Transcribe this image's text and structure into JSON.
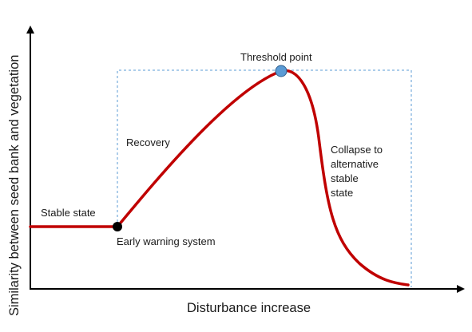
{
  "diagram": {
    "x_axis_label": "Disturbance increase",
    "y_axis_label": "Similarity between seed bank and vegetation",
    "annotations": {
      "stable_state": "Stable state",
      "early_warning": "Early warning system",
      "recovery": "Recovery",
      "threshold": "Threshold point",
      "collapse": [
        "Collapse to",
        "alternative",
        "stable",
        "state"
      ]
    },
    "colors": {
      "curve": "#c00000",
      "box": "#5b9bd5",
      "threshold_marker": "#5b9bd5",
      "early_warning_marker": "#000000",
      "axes": "#000000"
    }
  }
}
